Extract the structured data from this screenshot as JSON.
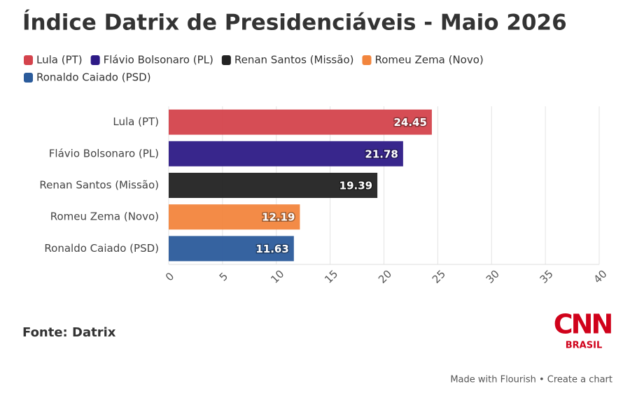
{
  "chart_data": {
    "type": "bar",
    "orientation": "horizontal",
    "title": "Índice Datrix de Presidenciáveis - Maio 2026",
    "categories": [
      "Lula (PT)",
      "Flávio Bolsonaro (PL)",
      "Renan Santos (Missão)",
      "Romeu Zema (Novo)",
      "Ronaldo Caiado (PSD)"
    ],
    "values": [
      24.45,
      21.78,
      19.39,
      12.19,
      11.63
    ],
    "colors": [
      "#d4434c",
      "#2d1a86",
      "#222222",
      "#f2853d",
      "#2b5b9b"
    ],
    "xlim": [
      0,
      40
    ],
    "xticks": [
      0,
      5,
      10,
      15,
      20,
      25,
      30,
      35,
      40
    ],
    "grid": true,
    "legend": "top",
    "source": "Fonte: Datrix",
    "logo": {
      "main": "CNN",
      "sub": "BRASIL"
    },
    "credit": "Made with Flourish • Create a chart"
  }
}
